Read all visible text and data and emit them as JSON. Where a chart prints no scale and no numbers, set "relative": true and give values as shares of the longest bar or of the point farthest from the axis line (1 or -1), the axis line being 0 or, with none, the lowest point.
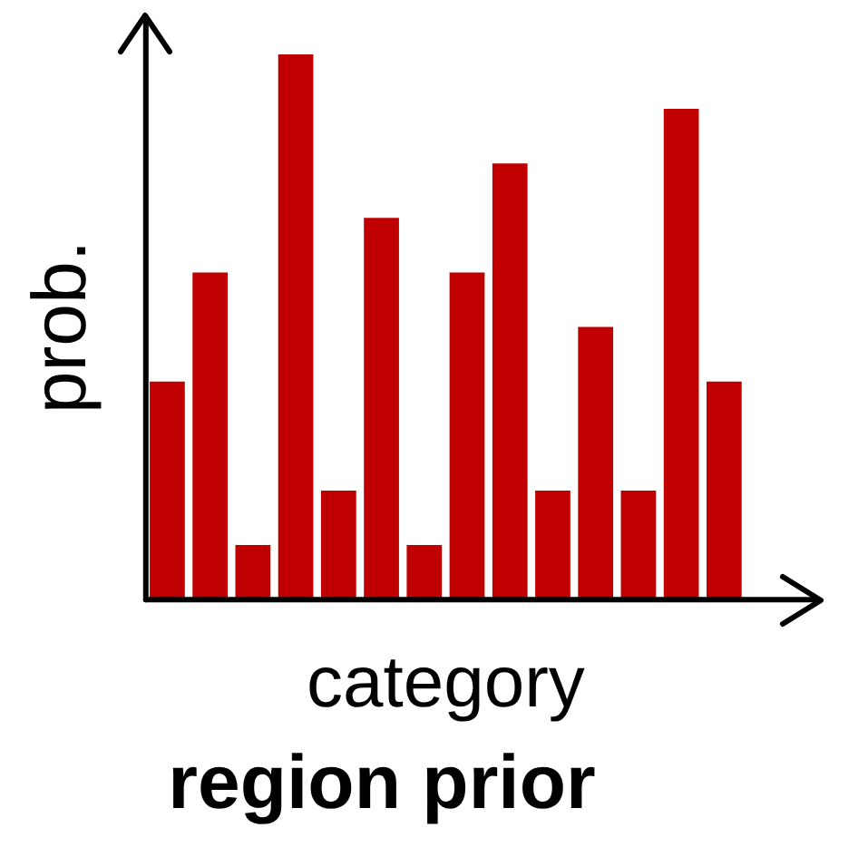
{
  "chart_data": {
    "type": "bar",
    "title": "region prior",
    "xlabel": "category",
    "ylabel": "prob.",
    "relative": true,
    "categories": [
      null,
      null,
      null,
      null,
      null,
      null,
      null,
      null,
      null,
      null,
      null,
      null,
      null,
      null
    ],
    "values": [
      0.4,
      0.6,
      0.1,
      1,
      0.2,
      0.7,
      0.1,
      0.6,
      0.8,
      0.2,
      0.5,
      0.2,
      0.9,
      0.4
    ],
    "color": "#c00000",
    "grid": false,
    "legend": false
  }
}
